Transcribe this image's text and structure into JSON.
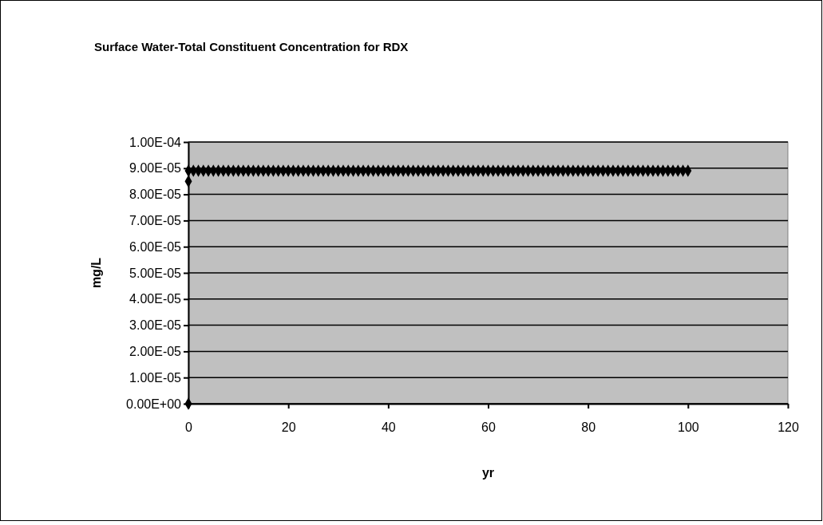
{
  "chart_data": {
    "type": "scatter",
    "title": "Surface Water-Total Constituent Concentration for RDX",
    "xlabel": "yr",
    "ylabel": "mg/L",
    "x": [
      0,
      0,
      0,
      1,
      2,
      3,
      4,
      5,
      6,
      7,
      8,
      9,
      10,
      11,
      12,
      13,
      14,
      15,
      16,
      17,
      18,
      19,
      20,
      21,
      22,
      23,
      24,
      25,
      26,
      27,
      28,
      29,
      30,
      31,
      32,
      33,
      34,
      35,
      36,
      37,
      38,
      39,
      40,
      41,
      42,
      43,
      44,
      45,
      46,
      47,
      48,
      49,
      50,
      51,
      52,
      53,
      54,
      55,
      56,
      57,
      58,
      59,
      60,
      61,
      62,
      63,
      64,
      65,
      66,
      67,
      68,
      69,
      70,
      71,
      72,
      73,
      74,
      75,
      76,
      77,
      78,
      79,
      80,
      81,
      82,
      83,
      84,
      85,
      86,
      87,
      88,
      89,
      90,
      91,
      92,
      93,
      94,
      95,
      96,
      97,
      98,
      99,
      100
    ],
    "series": [
      {
        "color": "#000000",
        "values": [
          0,
          8.5e-05,
          8.9e-05,
          8.9e-05,
          8.9e-05,
          8.9e-05,
          8.9e-05,
          8.9e-05,
          8.9e-05,
          8.9e-05,
          8.9e-05,
          8.9e-05,
          8.9e-05,
          8.9e-05,
          8.9e-05,
          8.9e-05,
          8.9e-05,
          8.9e-05,
          8.9e-05,
          8.9e-05,
          8.9e-05,
          8.9e-05,
          8.9e-05,
          8.9e-05,
          8.9e-05,
          8.9e-05,
          8.9e-05,
          8.9e-05,
          8.9e-05,
          8.9e-05,
          8.9e-05,
          8.9e-05,
          8.9e-05,
          8.9e-05,
          8.9e-05,
          8.9e-05,
          8.9e-05,
          8.9e-05,
          8.9e-05,
          8.9e-05,
          8.9e-05,
          8.9e-05,
          8.9e-05,
          8.9e-05,
          8.9e-05,
          8.9e-05,
          8.9e-05,
          8.9e-05,
          8.9e-05,
          8.9e-05,
          8.9e-05,
          8.9e-05,
          8.9e-05,
          8.9e-05,
          8.9e-05,
          8.9e-05,
          8.9e-05,
          8.9e-05,
          8.9e-05,
          8.9e-05,
          8.9e-05,
          8.9e-05,
          8.9e-05,
          8.9e-05,
          8.9e-05,
          8.9e-05,
          8.9e-05,
          8.9e-05,
          8.9e-05,
          8.9e-05,
          8.9e-05,
          8.9e-05,
          8.9e-05,
          8.9e-05,
          8.9e-05,
          8.9e-05,
          8.9e-05,
          8.9e-05,
          8.9e-05,
          8.9e-05,
          8.9e-05,
          8.9e-05,
          8.9e-05,
          8.9e-05,
          8.9e-05,
          8.9e-05,
          8.9e-05,
          8.9e-05,
          8.9e-05,
          8.9e-05,
          8.9e-05,
          8.9e-05,
          8.9e-05,
          8.9e-05,
          8.9e-05,
          8.9e-05,
          8.9e-05,
          8.9e-05,
          8.9e-05,
          8.9e-05,
          8.9e-05,
          8.9e-05,
          8.9e-05
        ]
      }
    ],
    "xlim": [
      0,
      120
    ],
    "xticks": [
      0,
      20,
      40,
      60,
      80,
      100,
      120
    ],
    "ylim": [
      0,
      0.0001
    ],
    "yticks": [
      {
        "value": 0,
        "label": "0.00E+00"
      },
      {
        "value": 1e-05,
        "label": "1.00E-05"
      },
      {
        "value": 2e-05,
        "label": "2.00E-05"
      },
      {
        "value": 3e-05,
        "label": "3.00E-05"
      },
      {
        "value": 4e-05,
        "label": "4.00E-05"
      },
      {
        "value": 5e-05,
        "label": "5.00E-05"
      },
      {
        "value": 6e-05,
        "label": "6.00E-05"
      },
      {
        "value": 7e-05,
        "label": "7.00E-05"
      },
      {
        "value": 8e-05,
        "label": "8.00E-05"
      },
      {
        "value": 9e-05,
        "label": "9.00E-05"
      },
      {
        "value": 0.0001,
        "label": "1.00E-04"
      }
    ],
    "grid": "y",
    "marker": "diamond"
  }
}
